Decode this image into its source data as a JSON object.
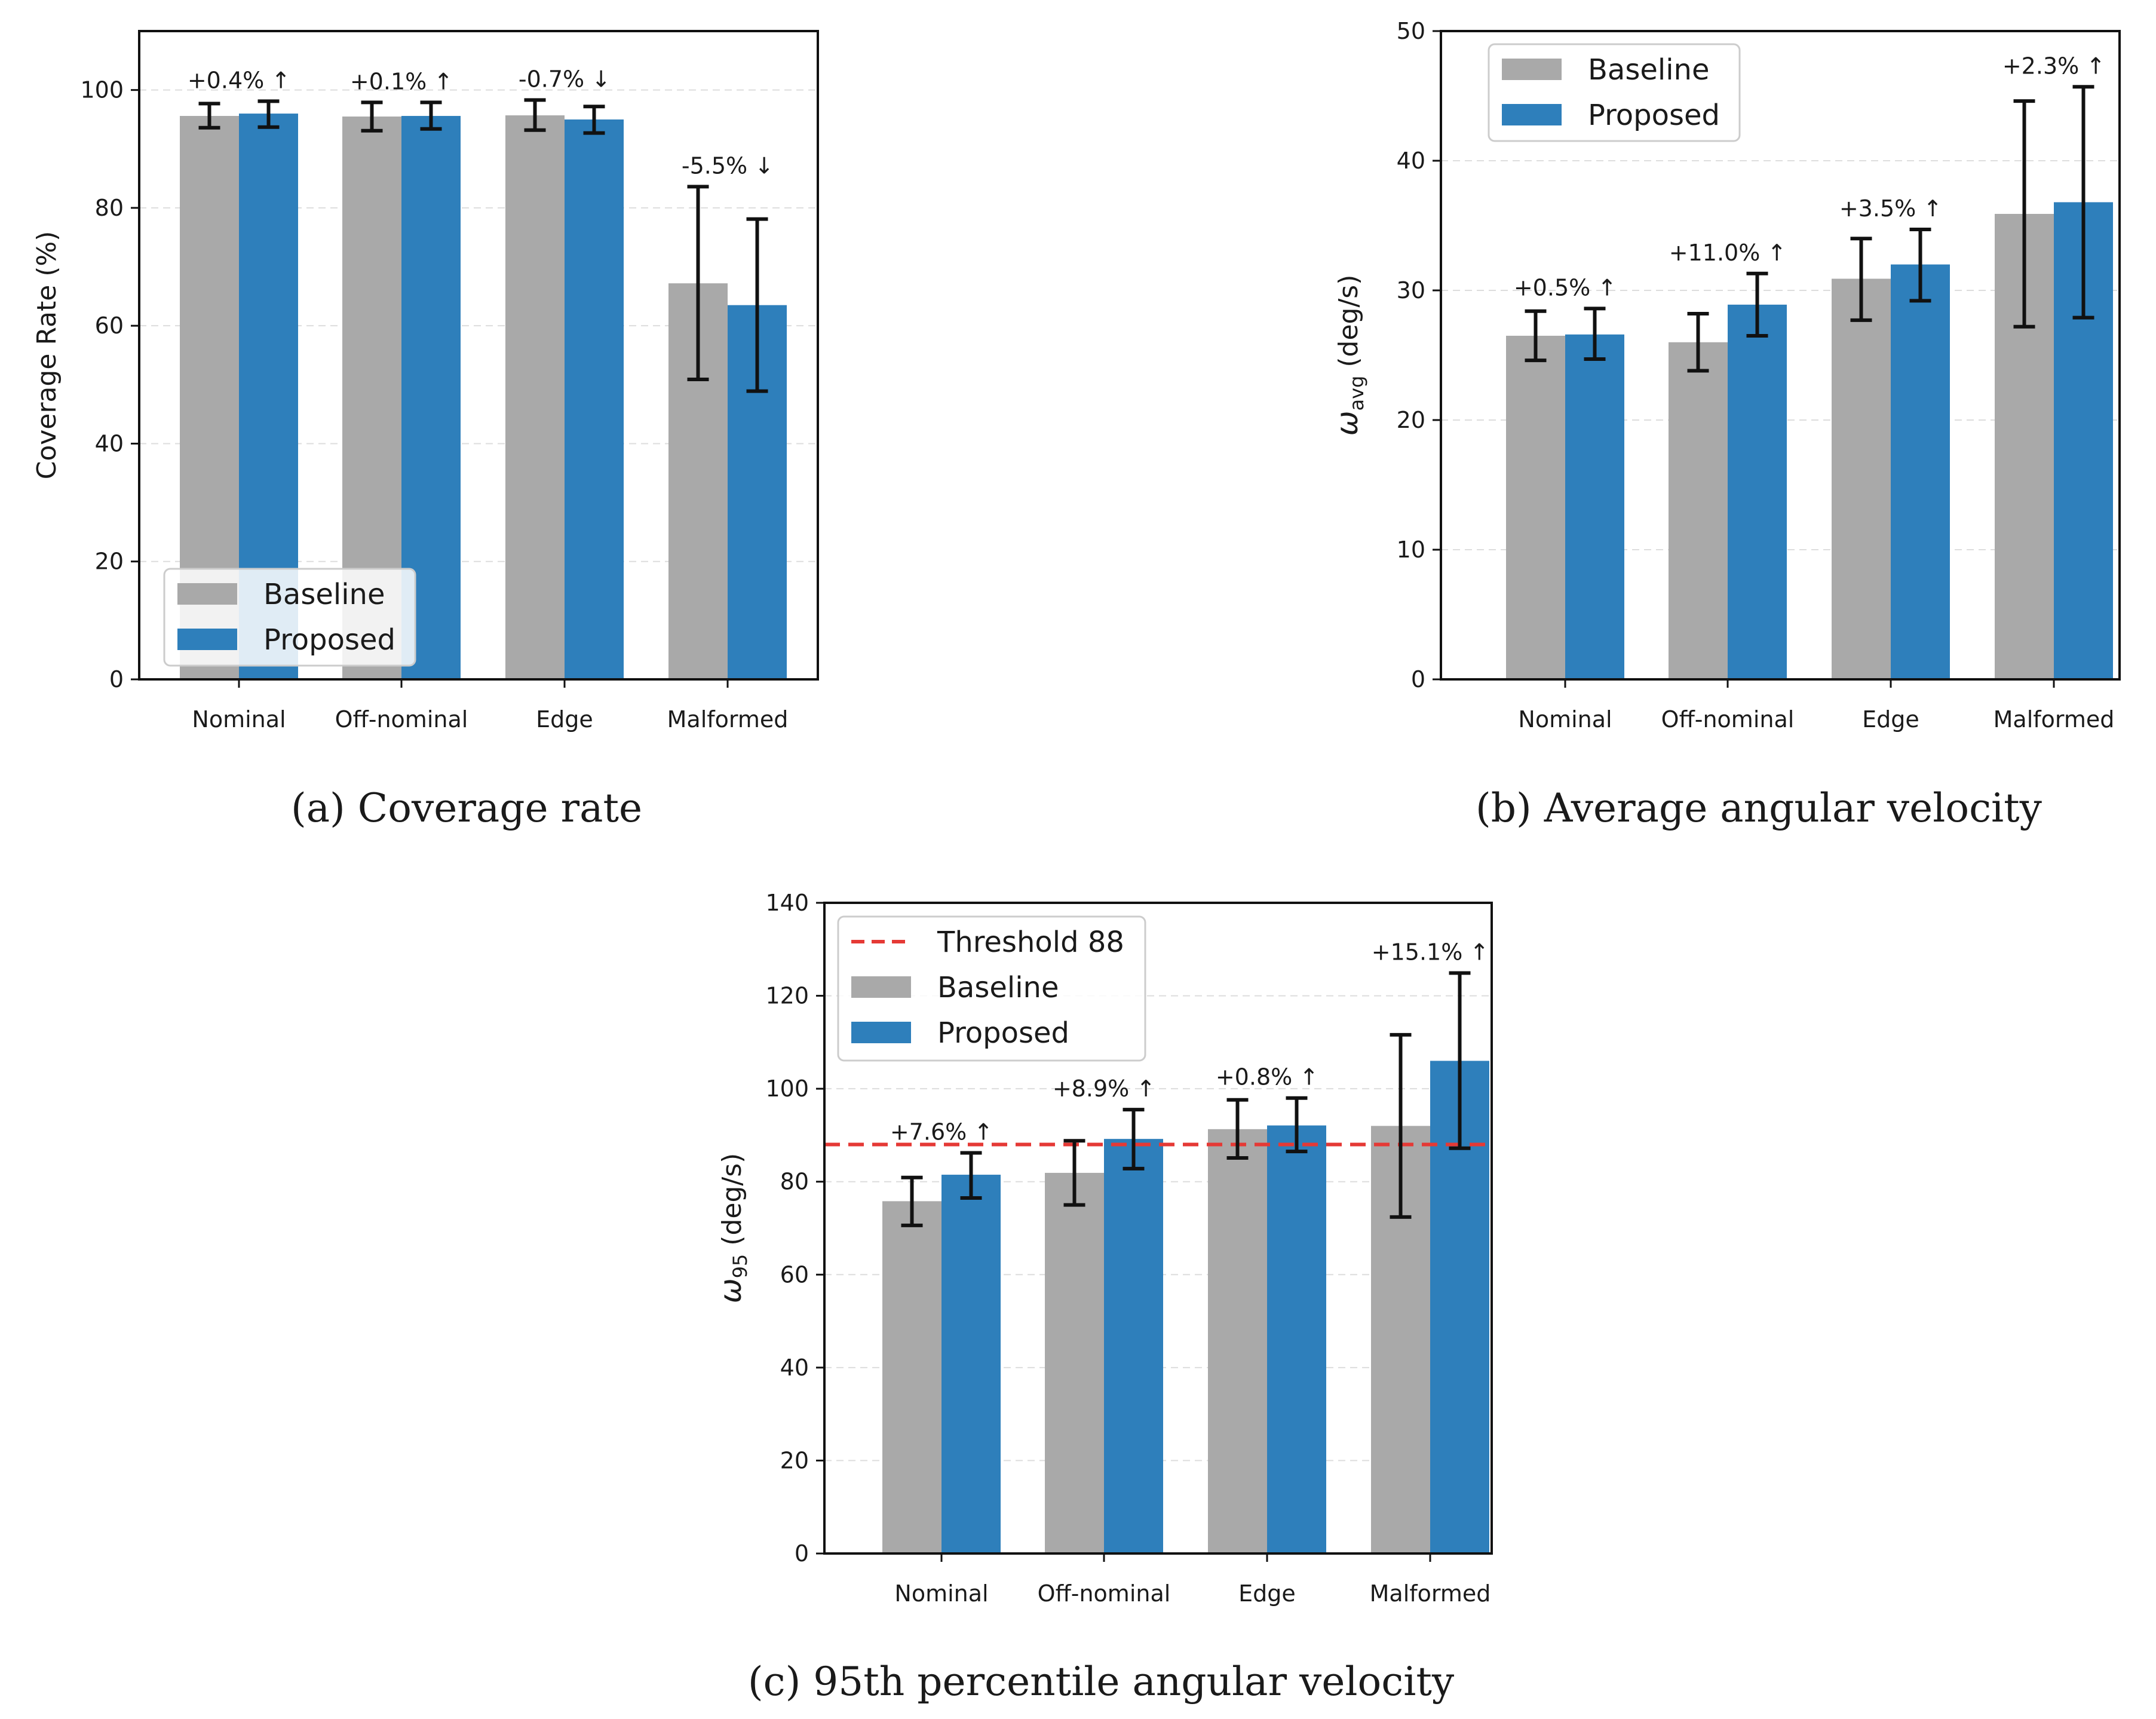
{
  "colors": {
    "baseline": "#a9a9a9",
    "proposed": "#2e7fbb",
    "threshold": "#e53935",
    "errorbar": "#111111",
    "grid": "#dddddd"
  },
  "chart_data": [
    {
      "id": "a",
      "type": "bar",
      "caption": "(a) Coverage rate",
      "ylabel": "Coverage Rate (%)",
      "xlabel": "",
      "categories": [
        "Nominal",
        "Off-nominal",
        "Edge",
        "Malformed"
      ],
      "ylim": [
        0,
        110
      ],
      "yticks": [
        0,
        20,
        40,
        60,
        80,
        100
      ],
      "grid": "y-dashed",
      "legend": {
        "position": "lower-left",
        "entries": [
          "Baseline",
          "Proposed"
        ]
      },
      "series": [
        {
          "name": "Baseline",
          "values": [
            95.6,
            95.5,
            95.7,
            67.2
          ],
          "err_low": [
            93.6,
            93.1,
            93.2,
            50.9
          ],
          "err_high": [
            97.7,
            97.9,
            98.3,
            83.6
          ]
        },
        {
          "name": "Proposed",
          "values": [
            96.0,
            95.6,
            95.0,
            63.5
          ],
          "err_low": [
            93.7,
            93.4,
            92.7,
            48.9
          ],
          "err_high": [
            98.1,
            97.9,
            97.2,
            78.1
          ]
        }
      ],
      "annotations": [
        "+0.4% ↑",
        "+0.1% ↑",
        "-0.7% ↓",
        "-5.5% ↓"
      ]
    },
    {
      "id": "b",
      "type": "bar",
      "caption": "(b) Average angular velocity",
      "ylabel_symbol": "ω",
      "ylabel_sub": "avg",
      "ylabel_unit": " (deg/s)",
      "xlabel": "",
      "categories": [
        "Nominal",
        "Off-nominal",
        "Edge",
        "Malformed"
      ],
      "ylim": [
        0,
        50
      ],
      "yticks": [
        0,
        10,
        20,
        30,
        40,
        50
      ],
      "grid": "y-dashed",
      "legend": {
        "position": "upper-left",
        "entries": [
          "Baseline",
          "Proposed"
        ]
      },
      "series": [
        {
          "name": "Baseline",
          "values": [
            26.5,
            26.0,
            30.9,
            35.9
          ],
          "err_low": [
            24.6,
            23.8,
            27.7,
            27.2
          ],
          "err_high": [
            28.4,
            28.2,
            34.0,
            44.6
          ]
        },
        {
          "name": "Proposed",
          "values": [
            26.6,
            28.9,
            32.0,
            36.8
          ],
          "err_low": [
            24.7,
            26.5,
            29.2,
            27.9
          ],
          "err_high": [
            28.6,
            31.3,
            34.7,
            45.7
          ]
        }
      ],
      "annotations": [
        "+0.5% ↑",
        "+11.0% ↑",
        "+3.5% ↑",
        "+2.3% ↑"
      ]
    },
    {
      "id": "c",
      "type": "bar",
      "caption": "(c) 95th percentile angular velocity",
      "ylabel_symbol": "ω",
      "ylabel_sub": "95",
      "ylabel_unit": " (deg/s)",
      "xlabel": "",
      "categories": [
        "Nominal",
        "Off-nominal",
        "Edge",
        "Malformed"
      ],
      "ylim": [
        0,
        140
      ],
      "yticks": [
        0,
        20,
        40,
        60,
        80,
        100,
        120,
        140
      ],
      "grid": "y-dashed",
      "threshold": {
        "value": 88,
        "label": "Threshold 88"
      },
      "legend": {
        "position": "upper-left",
        "entries": [
          "Threshold 88",
          "Baseline",
          "Proposed"
        ]
      },
      "series": [
        {
          "name": "Baseline",
          "values": [
            75.8,
            81.9,
            91.3,
            92.0
          ],
          "err_low": [
            70.6,
            75.0,
            85.1,
            72.4
          ],
          "err_high": [
            80.9,
            88.8,
            97.6,
            111.6
          ]
        },
        {
          "name": "Proposed",
          "values": [
            81.5,
            89.2,
            92.1,
            106.0
          ],
          "err_low": [
            76.5,
            82.8,
            86.5,
            87.2
          ],
          "err_high": [
            86.2,
            95.5,
            98.0,
            124.9
          ]
        }
      ],
      "annotations": [
        "+7.6% ↑",
        "+8.9% ↑",
        "+0.8% ↑",
        "+15.1% ↑"
      ]
    }
  ]
}
